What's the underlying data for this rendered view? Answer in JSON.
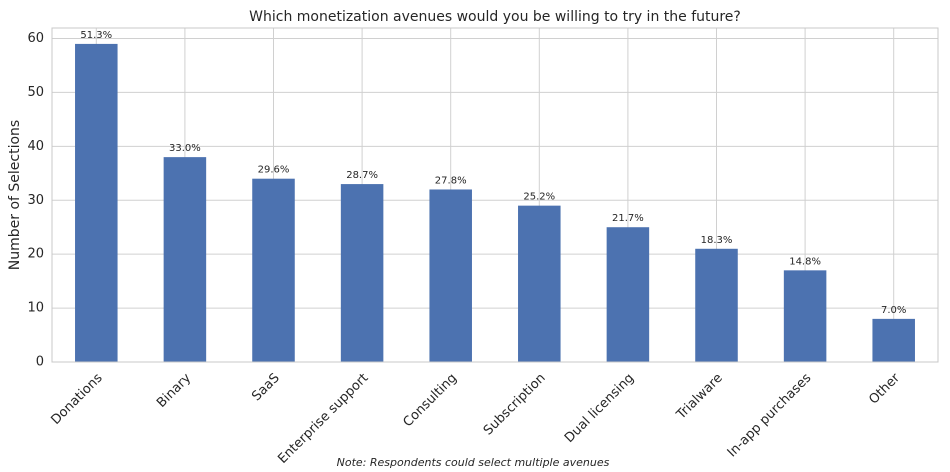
{
  "chart_data": {
    "type": "bar",
    "title": "Which monetization avenues would you be willing to try in the future?",
    "y_label": "Number of Selections",
    "note": "Note: Respondents could select multiple avenues",
    "categories": [
      "Donations",
      "Binary",
      "SaaS",
      "Enterprise support",
      "Consulting",
      "Subscription",
      "Dual licensing",
      "Trialware",
      "In-app purchases",
      "Other"
    ],
    "values": [
      59,
      38,
      34,
      33,
      32,
      29,
      25,
      21,
      17,
      8
    ],
    "value_labels": [
      "51.3%",
      "33.0%",
      "29.6%",
      "28.7%",
      "27.8%",
      "25.2%",
      "21.7%",
      "18.3%",
      "14.8%",
      "7.0%"
    ],
    "color": "#4c72b0",
    "ylim": [
      0,
      61.95
    ],
    "yticks": [
      0,
      10,
      20,
      30,
      40,
      50,
      60
    ],
    "grid": true
  }
}
